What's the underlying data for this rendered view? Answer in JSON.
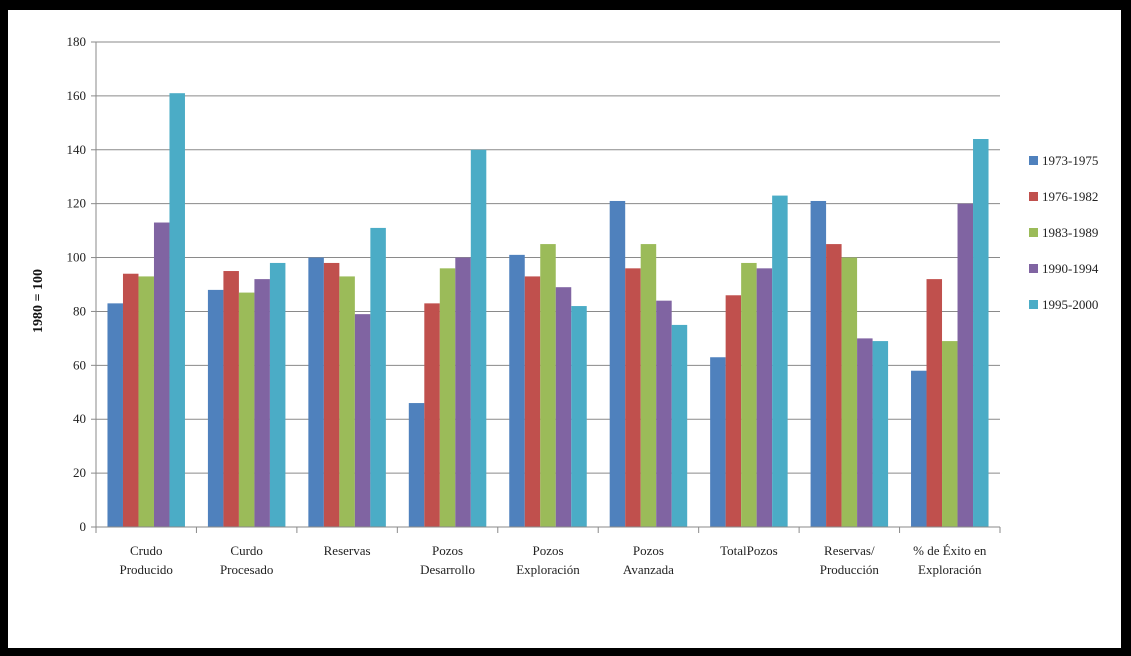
{
  "chart_data": {
    "type": "bar",
    "title": "",
    "xlabel": "",
    "ylabel": "1980 = 100",
    "ylim": [
      0,
      180
    ],
    "yticks": [
      0,
      20,
      40,
      60,
      80,
      100,
      120,
      140,
      160,
      180
    ],
    "grid": true,
    "legend_position": "right",
    "categories": [
      [
        "Crudo",
        "Producido"
      ],
      [
        "Curdo",
        "Procesado"
      ],
      [
        "Reservas"
      ],
      [
        "Pozos",
        "Desarrollo"
      ],
      [
        "Pozos",
        "Exploración"
      ],
      [
        "Pozos",
        "Avanzada"
      ],
      [
        "TotalPozos"
      ],
      [
        "Reservas/",
        "Producción"
      ],
      [
        "% de Éxito en",
        "Exploración"
      ]
    ],
    "series": [
      {
        "name": "1973-1975",
        "color": "#4F81BD",
        "values": [
          83,
          88,
          100,
          46,
          101,
          121,
          63,
          121,
          58
        ]
      },
      {
        "name": "1976-1982",
        "color": "#C0504D",
        "values": [
          94,
          95,
          98,
          83,
          93,
          96,
          86,
          105,
          92
        ]
      },
      {
        "name": "1983-1989",
        "color": "#9BBB59",
        "values": [
          93,
          87,
          93,
          96,
          105,
          105,
          98,
          100,
          69
        ]
      },
      {
        "name": "1990-1994",
        "color": "#8064A2",
        "values": [
          113,
          92,
          79,
          100,
          89,
          84,
          96,
          70,
          120
        ]
      },
      {
        "name": "1995-2000",
        "color": "#4BACC6",
        "values": [
          161,
          98,
          111,
          140,
          82,
          75,
          123,
          69,
          144
        ]
      }
    ]
  }
}
